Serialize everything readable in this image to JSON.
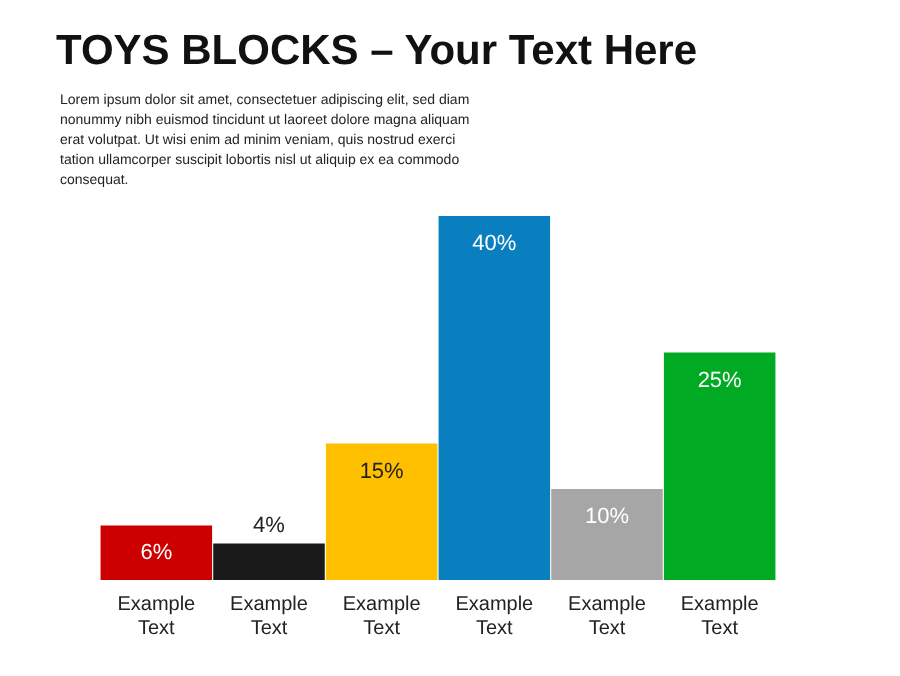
{
  "chart_data": {
    "type": "bar",
    "title": "TOYS BLOCKS – Your Text Here",
    "subtitle": "Lorem ipsum dolor sit amet, consectetuer adipiscing elit, sed diam nonummy nibh euismod tincidunt ut laoreet dolore magna aliquam erat volutpat. Ut wisi enim ad minim veniam, quis nostrud exerci tation ullamcorper suscipit lobortis nisl ut aliquip ex ea commodo consequat.",
    "categories": [
      "Example Text",
      "Example Text",
      "Example Text",
      "Example Text",
      "Example Text",
      "Example Text"
    ],
    "values": [
      6,
      4,
      15,
      40,
      10,
      25
    ],
    "colors": [
      "#cc0000",
      "#1a1a1a",
      "#ffc000",
      "#0a7fc0",
      "#a6a6a6",
      "#00aa22"
    ],
    "value_labels": [
      "6%",
      "4%",
      "15%",
      "40%",
      "10%",
      "25%"
    ],
    "tick_labels": "x",
    "grid": false,
    "legend": false
  }
}
